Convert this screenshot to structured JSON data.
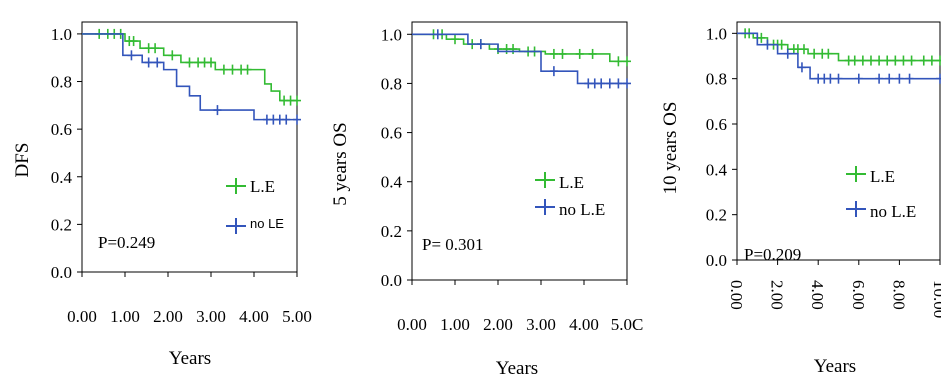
{
  "chart_data": [
    {
      "type": "line",
      "ylabel": "DFS",
      "xlabel": "Years",
      "xlim": [
        0,
        5
      ],
      "ylim": [
        0,
        1.05
      ],
      "x_ticks": [
        "0.00",
        "1.00",
        "2.00",
        "3.00",
        "4.00",
        "5.00"
      ],
      "y_ticks": [
        "0.0",
        "0.2",
        "0.4",
        "0.6",
        "0.8",
        "1.0"
      ],
      "p_value_text": "P=0.249",
      "series": [
        {
          "name": "L.E",
          "color": "#33bb33",
          "steps": [
            [
              0,
              1.0
            ],
            [
              1.0,
              0.97
            ],
            [
              1.35,
              0.94
            ],
            [
              1.9,
              0.91
            ],
            [
              2.3,
              0.88
            ],
            [
              3.1,
              0.85
            ],
            [
              4.25,
              0.79
            ],
            [
              4.4,
              0.76
            ],
            [
              4.6,
              0.72
            ],
            [
              5.0,
              0.72
            ]
          ],
          "censor_x": [
            0.4,
            0.6,
            0.75,
            0.9,
            1.1,
            1.2,
            1.55,
            1.7,
            2.1,
            2.5,
            2.7,
            2.85,
            3.0,
            3.3,
            3.5,
            3.7,
            3.85,
            4.7,
            4.85,
            5.0
          ]
        },
        {
          "name": "no LE",
          "color": "#3355bb",
          "steps": [
            [
              0,
              1.0
            ],
            [
              0.95,
              0.91
            ],
            [
              1.4,
              0.88
            ],
            [
              1.9,
              0.85
            ],
            [
              2.2,
              0.78
            ],
            [
              2.5,
              0.74
            ],
            [
              2.75,
              0.68
            ],
            [
              4.0,
              0.64
            ],
            [
              5.0,
              0.64
            ]
          ],
          "censor_x": [
            1.15,
            1.55,
            1.75,
            3.15,
            4.3,
            4.45,
            4.6,
            4.75,
            5.0
          ]
        }
      ],
      "legend_labels": [
        "L.E",
        "no LE"
      ]
    },
    {
      "type": "line",
      "ylabel": "5 years OS",
      "xlabel": "Years",
      "xlim": [
        0,
        5
      ],
      "ylim": [
        0,
        1.05
      ],
      "x_ticks": [
        "0.00",
        "1.00",
        "2.00",
        "3.00",
        "4.00",
        "5.0C"
      ],
      "y_ticks": [
        "0.0",
        "0.2",
        "0.4",
        "0.6",
        "0.8",
        "1.0"
      ],
      "p_value_text": "P= 0.301",
      "series": [
        {
          "name": "L.E",
          "color": "#33bb33",
          "steps": [
            [
              0,
              1.0
            ],
            [
              0.8,
              0.98
            ],
            [
              1.2,
              0.96
            ],
            [
              1.8,
              0.94
            ],
            [
              2.5,
              0.93
            ],
            [
              3.1,
              0.92
            ],
            [
              4.6,
              0.89
            ],
            [
              5.0,
              0.89
            ]
          ],
          "censor_x": [
            0.5,
            0.7,
            1.0,
            1.4,
            1.6,
            2.0,
            2.2,
            2.35,
            2.7,
            2.85,
            3.3,
            3.5,
            3.9,
            4.2,
            4.8,
            5.0
          ]
        },
        {
          "name": "no L.E",
          "color": "#3355bb",
          "steps": [
            [
              0,
              1.0
            ],
            [
              1.3,
              0.96
            ],
            [
              2.0,
              0.93
            ],
            [
              3.0,
              0.85
            ],
            [
              3.85,
              0.8
            ],
            [
              5.0,
              0.8
            ]
          ],
          "censor_x": [
            0.6,
            1.6,
            3.3,
            4.1,
            4.25,
            4.4,
            4.6,
            4.8,
            5.0
          ]
        }
      ],
      "legend_labels": [
        "L.E",
        "no L.E"
      ]
    },
    {
      "type": "line",
      "ylabel": "10 years OS",
      "xlabel": "Years",
      "xlim": [
        0,
        10
      ],
      "ylim": [
        0,
        1.05
      ],
      "x_ticks": [
        "0.00",
        "2.00",
        "4.00",
        "6.00",
        "8.00",
        "10.00"
      ],
      "y_ticks": [
        "0.0",
        "0.2",
        "0.4",
        "0.6",
        "0.8",
        "1.0"
      ],
      "p_value_text": "P=0.209",
      "series": [
        {
          "name": "L.E",
          "color": "#33bb33",
          "steps": [
            [
              0,
              1.0
            ],
            [
              0.8,
              0.98
            ],
            [
              1.5,
              0.95
            ],
            [
              2.5,
              0.93
            ],
            [
              3.5,
              0.91
            ],
            [
              5.0,
              0.88
            ],
            [
              10.0,
              0.88
            ]
          ],
          "censor_x": [
            0.4,
            0.6,
            1.0,
            1.2,
            1.8,
            2.0,
            2.2,
            2.8,
            3.0,
            3.3,
            3.8,
            4.2,
            4.5,
            5.5,
            5.8,
            6.2,
            6.6,
            7.0,
            7.4,
            7.8,
            8.2,
            8.6,
            9.2,
            9.6,
            10.0
          ]
        },
        {
          "name": "no L.E",
          "color": "#3355bb",
          "steps": [
            [
              0,
              1.0
            ],
            [
              1.0,
              0.95
            ],
            [
              2.0,
              0.91
            ],
            [
              3.0,
              0.85
            ],
            [
              3.6,
              0.8
            ],
            [
              10.0,
              0.8
            ]
          ],
          "censor_x": [
            1.5,
            2.5,
            3.2,
            4.0,
            4.3,
            4.6,
            5.0,
            6.0,
            7.0,
            7.5,
            8.0,
            8.5,
            10.0
          ]
        }
      ],
      "legend_labels": [
        "L.E",
        "no L.E"
      ]
    }
  ]
}
